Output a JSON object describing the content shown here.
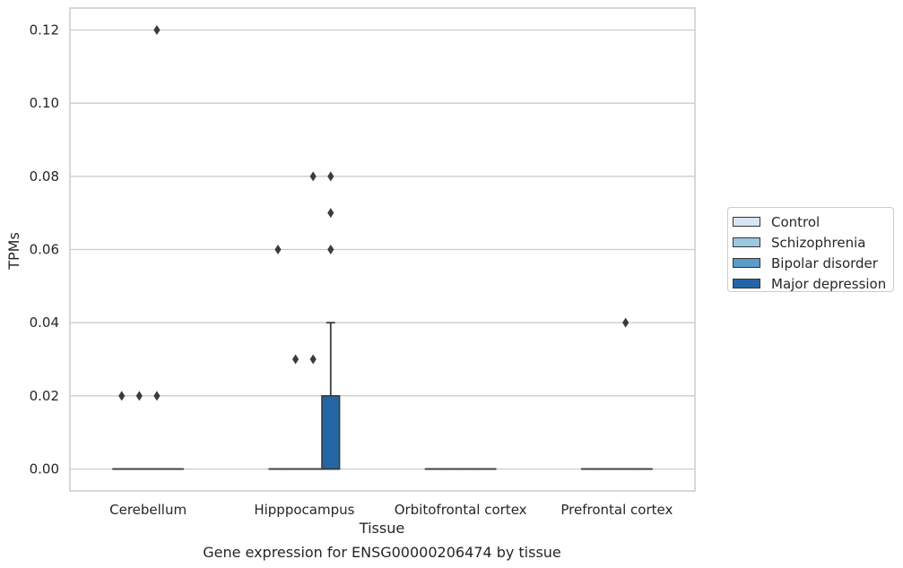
{
  "chart_data": {
    "type": "box",
    "xlabel": "Tissue",
    "ylabel": "TPMs",
    "caption": "Gene expression for ENSG00000206474 by tissue",
    "categories": [
      "Cerebellum",
      "Hipppocampus",
      "Orbitofrontal cortex",
      "Prefrontal cortex"
    ],
    "ylim": [
      -0.006,
      0.126
    ],
    "yticks": [
      "0.00",
      "0.02",
      "0.04",
      "0.06",
      "0.08",
      "0.10",
      "0.12"
    ],
    "grid": "horizontal",
    "legend_position": "right",
    "series": [
      {
        "name": "Control",
        "color": "#d6e6f4",
        "boxes": [
          {
            "q1": 0,
            "median": 0,
            "q3": 0,
            "whisker_low": 0,
            "whisker_high": 0,
            "outliers": [
              0.02
            ]
          },
          {
            "q1": 0,
            "median": 0,
            "q3": 0,
            "whisker_low": 0,
            "whisker_high": 0,
            "outliers": [
              0.06
            ]
          },
          {
            "q1": 0,
            "median": 0,
            "q3": 0,
            "whisker_low": 0,
            "whisker_high": 0,
            "outliers": []
          },
          {
            "q1": 0,
            "median": 0,
            "q3": 0,
            "whisker_low": 0,
            "whisker_high": 0,
            "outliers": []
          }
        ]
      },
      {
        "name": "Schizophrenia",
        "color": "#9ac8e0",
        "boxes": [
          {
            "q1": 0,
            "median": 0,
            "q3": 0,
            "whisker_low": 0,
            "whisker_high": 0,
            "outliers": [
              0.02
            ]
          },
          {
            "q1": 0,
            "median": 0,
            "q3": 0,
            "whisker_low": 0,
            "whisker_high": 0,
            "outliers": [
              0.03
            ]
          },
          {
            "q1": 0,
            "median": 0,
            "q3": 0,
            "whisker_low": 0,
            "whisker_high": 0,
            "outliers": []
          },
          {
            "q1": 0,
            "median": 0,
            "q3": 0,
            "whisker_low": 0,
            "whisker_high": 0,
            "outliers": []
          }
        ]
      },
      {
        "name": "Bipolar disorder",
        "color": "#5a9dc8",
        "boxes": [
          {
            "q1": 0,
            "median": 0,
            "q3": 0,
            "whisker_low": 0,
            "whisker_high": 0,
            "outliers": [
              0.02,
              0.12
            ]
          },
          {
            "q1": 0,
            "median": 0,
            "q3": 0,
            "whisker_low": 0,
            "whisker_high": 0,
            "outliers": [
              0.03,
              0.08
            ]
          },
          {
            "q1": 0,
            "median": 0,
            "q3": 0,
            "whisker_low": 0,
            "whisker_high": 0,
            "outliers": []
          },
          {
            "q1": 0,
            "median": 0,
            "q3": 0,
            "whisker_low": 0,
            "whisker_high": 0,
            "outliers": [
              0.04
            ]
          }
        ]
      },
      {
        "name": "Major depression",
        "color": "#2465a6",
        "boxes": [
          {
            "q1": 0,
            "median": 0,
            "q3": 0,
            "whisker_low": 0,
            "whisker_high": 0,
            "outliers": []
          },
          {
            "q1": 0,
            "median": 0,
            "q3": 0.02,
            "whisker_low": 0,
            "whisker_high": 0.04,
            "outliers": [
              0.06,
              0.07,
              0.08
            ]
          },
          {
            "q1": 0,
            "median": 0,
            "q3": 0,
            "whisker_low": 0,
            "whisker_high": 0,
            "outliers": []
          },
          {
            "q1": 0,
            "median": 0,
            "q3": 0,
            "whisker_low": 0,
            "whisker_high": 0,
            "outliers": []
          }
        ]
      }
    ]
  }
}
